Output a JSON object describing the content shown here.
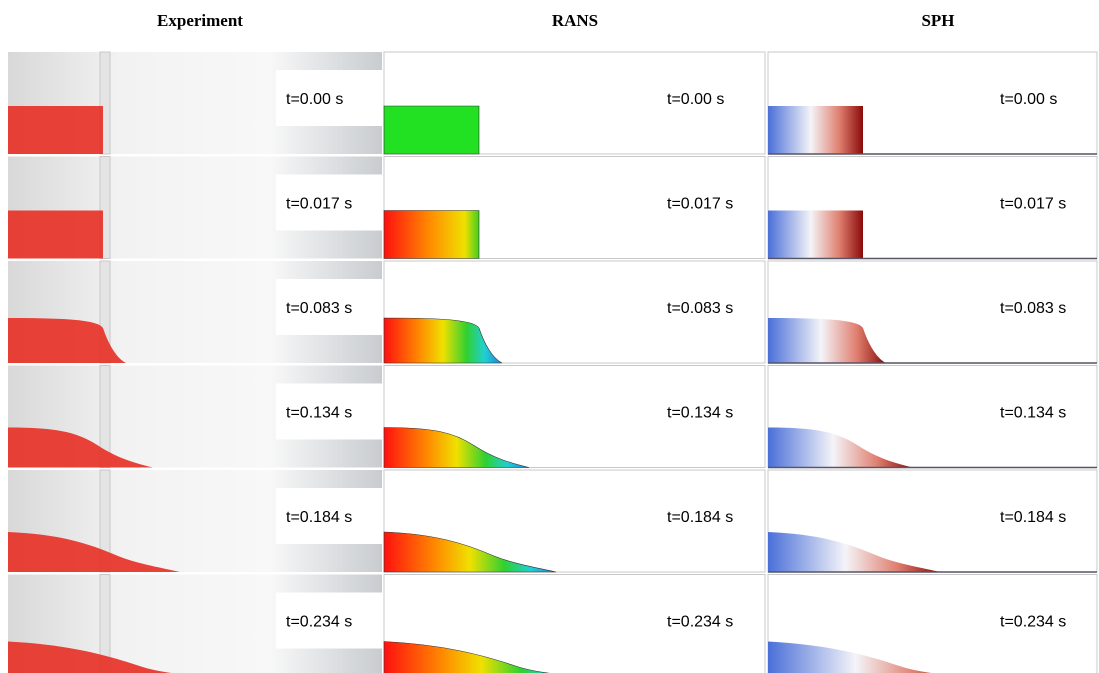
{
  "columns": [
    "Experiment",
    "RANS",
    "SPH"
  ],
  "rows": [
    [
      "t=0.00 s",
      "t=0.00 s",
      "t=0.00 s"
    ],
    [
      "t=0.017 s",
      "t=0.017 s",
      "t=0.017 s"
    ],
    [
      "t=0.083 s",
      "t=0.083 s",
      "t=0.083 s"
    ],
    [
      "t=0.134 s",
      "t=0.134 s",
      "t=0.134 s"
    ],
    [
      "t=0.184 s",
      "t=0.184 s",
      "t=0.184 s"
    ],
    [
      "t=0.234 s",
      "t=0.234 s",
      "t=0.234 s"
    ]
  ]
}
